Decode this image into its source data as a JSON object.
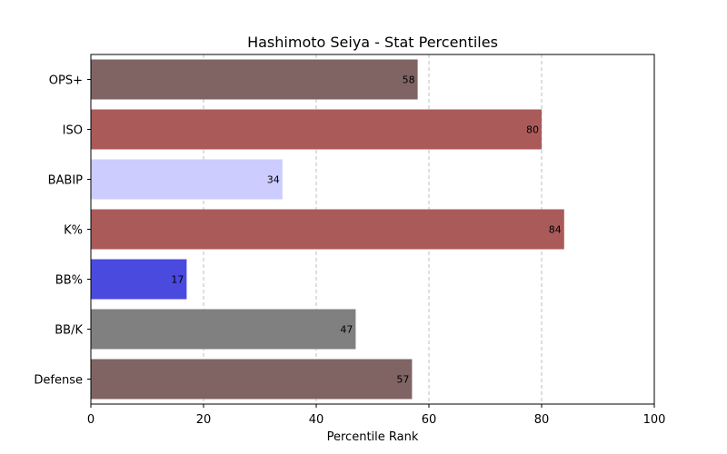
{
  "chart_data": {
    "type": "bar",
    "orientation": "horizontal",
    "title": "Hashimoto Seiya - Stat Percentiles",
    "xlabel": "Percentile Rank",
    "ylabel": "",
    "xlim": [
      0,
      100
    ],
    "xticks": [
      0,
      20,
      40,
      60,
      80,
      100
    ],
    "grid": "x-dashed",
    "categories": [
      "OPS+",
      "ISO",
      "BABIP",
      "K%",
      "BB%",
      "BB/K",
      "Defense"
    ],
    "values": [
      58,
      80,
      34,
      84,
      17,
      47,
      57
    ],
    "colors": [
      "#806464",
      "#ab5a5a",
      "#ccccff",
      "#ab5a5a",
      "#4a4adf",
      "#808080",
      "#806464"
    ]
  }
}
